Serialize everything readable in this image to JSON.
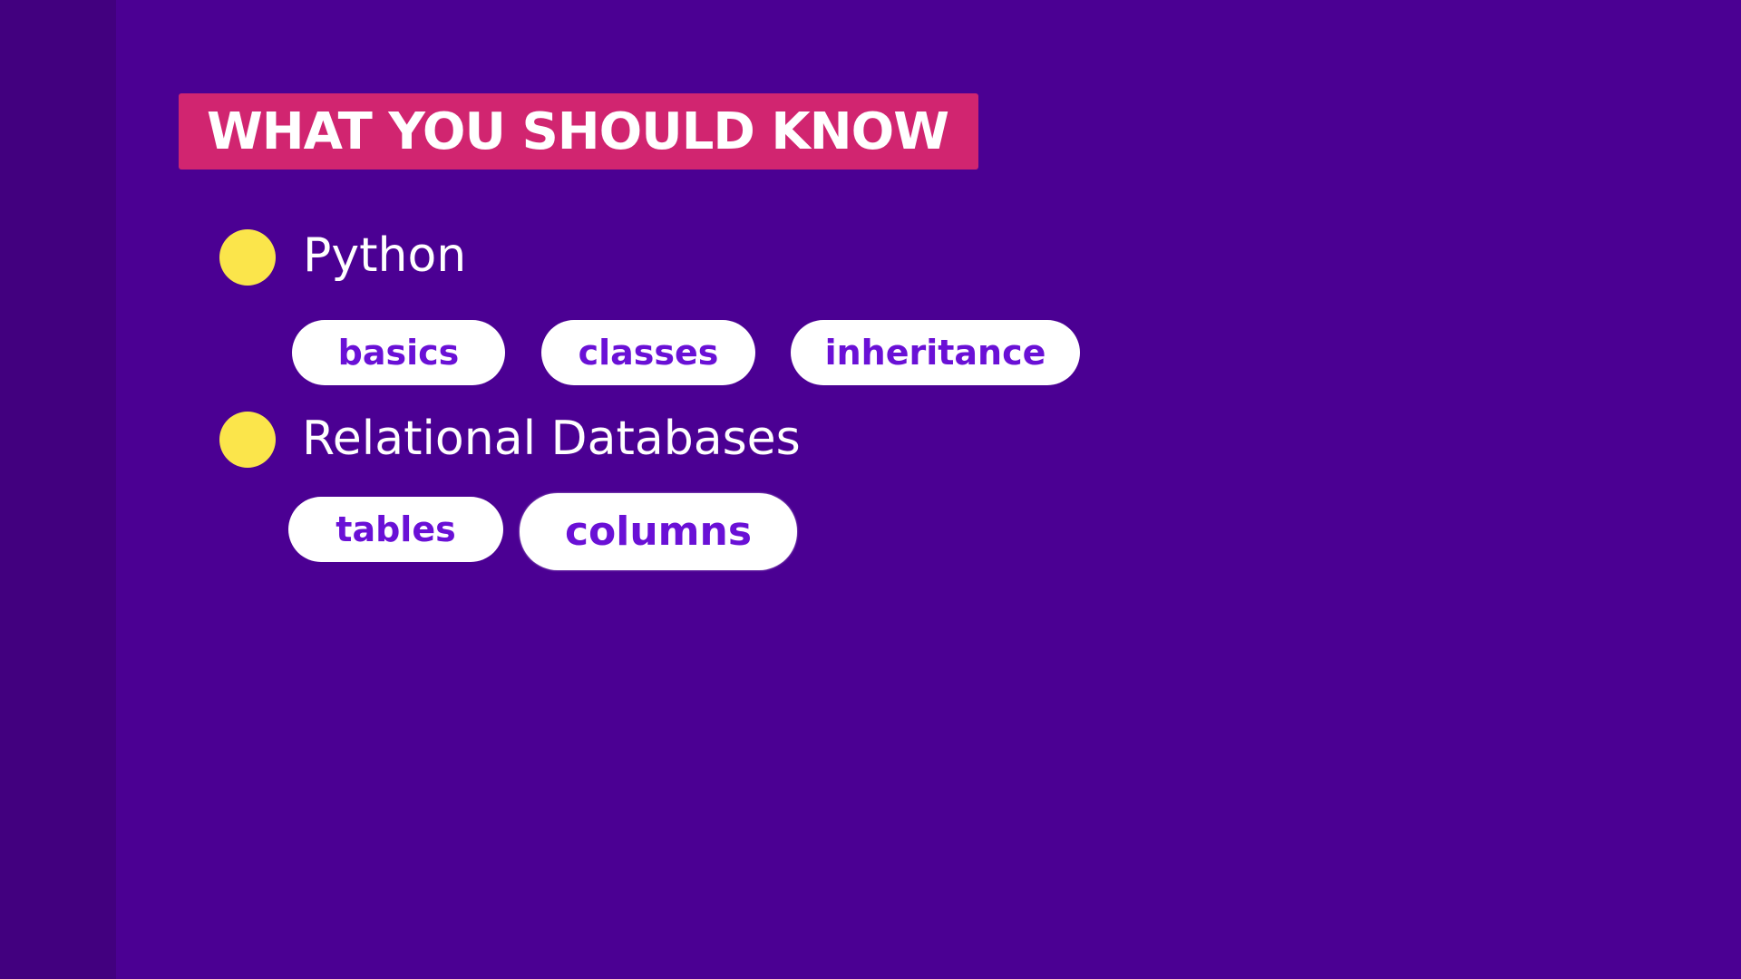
{
  "title": "WHAT YOU SHOULD KNOW",
  "sections": [
    {
      "heading": "Python",
      "tags": [
        "basics",
        "classes",
        "inheritance"
      ]
    },
    {
      "heading": "Relational Databases",
      "tags": [
        "tables",
        "columns"
      ]
    }
  ],
  "colors": {
    "background": "#4b0093",
    "left_strip": "#42007f",
    "banner": "#d12570",
    "bullet": "#fbe54b",
    "pill_text": "#6a10d6",
    "pill_bg": "#ffffff"
  }
}
